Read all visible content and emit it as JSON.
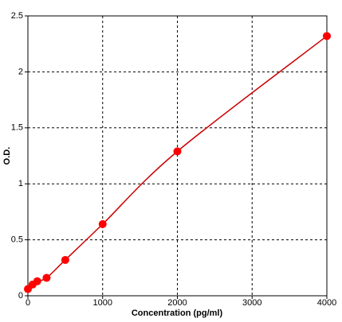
{
  "chart_data": {
    "type": "line",
    "xlabel": "Concentration (pg/ml)",
    "ylabel": "O.D.",
    "x": [
      0,
      62.5,
      125,
      250,
      500,
      1000,
      2000,
      4000
    ],
    "series": [
      {
        "color": "#ff0000",
        "values": [
          0.06,
          0.1,
          0.13,
          0.16,
          0.32,
          0.64,
          1.29,
          2.32
        ]
      }
    ],
    "line_color": "#cc0000",
    "xlim": [
      0,
      4000
    ],
    "xticks": [
      0,
      1000,
      2000,
      3000,
      4000
    ],
    "ylim": [
      0,
      2.5
    ],
    "yticks": [
      0,
      0.5,
      1,
      1.5,
      2,
      2.5
    ],
    "grid": true
  }
}
